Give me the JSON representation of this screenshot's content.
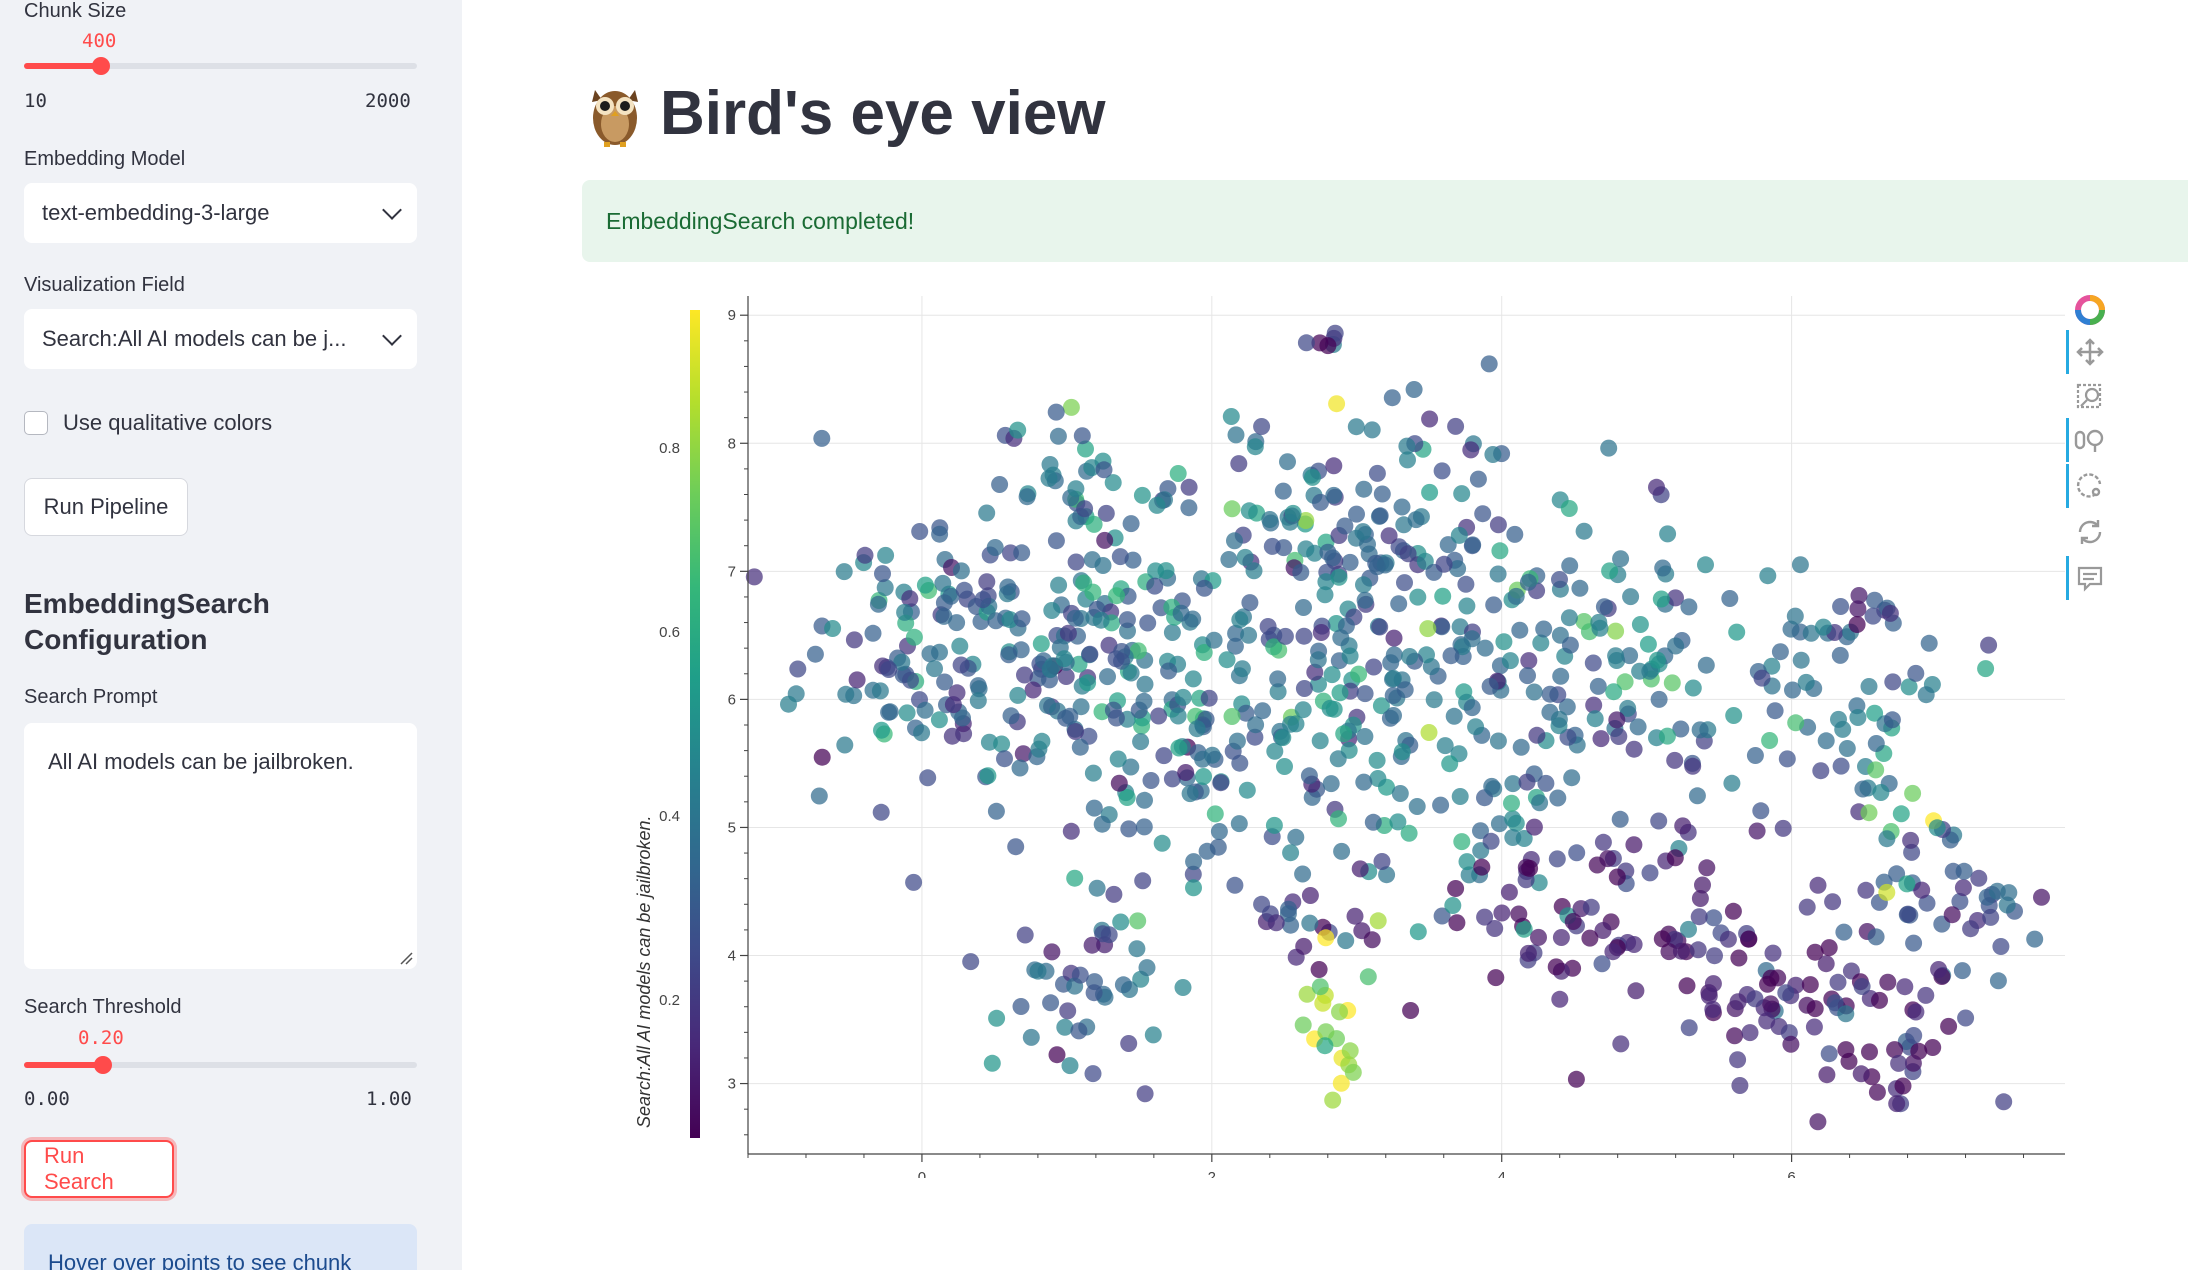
{
  "sidebar": {
    "chunk_size": {
      "label": "Chunk Size",
      "value": "400",
      "min": "10",
      "max": "2000",
      "fraction": 0.197
    },
    "embedding_model": {
      "label": "Embedding Model",
      "value": "text-embedding-3-large"
    },
    "visualization_field": {
      "label": "Visualization Field",
      "value": "Search:All AI models can be j..."
    },
    "qualitative_colors": {
      "label": "Use qualitative colors",
      "checked": false
    },
    "run_pipeline": "Run Pipeline",
    "search_config_title": "EmbeddingSearch Configuration",
    "search_prompt": {
      "label": "Search Prompt",
      "value": "All AI models can be jailbroken."
    },
    "search_threshold": {
      "label": "Search Threshold",
      "value": "0.20",
      "min": "0.00",
      "max": "1.00",
      "fraction": 0.2
    },
    "run_search": "Run Search",
    "info": "Hover over points to see chunk"
  },
  "main": {
    "title": "Bird's eye view",
    "title_icon": "owl-emoji",
    "success_message": "EmbeddingSearch completed!"
  },
  "toolbar": {
    "icons": [
      "bokeh-logo-icon",
      "pan-icon",
      "box-zoom-icon",
      "wheel-zoom-icon",
      "lasso-icon",
      "reset-icon",
      "hover-icon"
    ]
  },
  "chart_data": {
    "type": "scatter",
    "xlim": [
      -1.2,
      7.9
    ],
    "ylim": [
      2.45,
      9.15
    ],
    "x_ticks": [
      0,
      2,
      4,
      6
    ],
    "y_ticks": [
      3,
      4,
      5,
      6,
      7,
      8,
      9
    ],
    "colorbar": {
      "label": "Search:All AI models can be jailbroken.",
      "range": [
        0.05,
        0.95
      ],
      "ticks": [
        0.2,
        0.4,
        0.6,
        0.8
      ],
      "colormap": "viridis"
    },
    "grid": true,
    "clusters": [
      {
        "cx": 0.2,
        "cy": 6.4,
        "sx": 0.55,
        "sy": 0.55,
        "n": 140,
        "v": 0.32
      },
      {
        "cx": 1.4,
        "cy": 6.6,
        "sx": 0.45,
        "sy": 0.7,
        "n": 110,
        "v": 0.38
      },
      {
        "cx": 1.0,
        "cy": 7.8,
        "sx": 0.22,
        "sy": 0.3,
        "n": 20,
        "v": 0.4
      },
      {
        "cx": 1.8,
        "cy": 5.5,
        "sx": 0.45,
        "sy": 0.5,
        "n": 70,
        "v": 0.36
      },
      {
        "cx": 1.1,
        "cy": 3.8,
        "sx": 0.3,
        "sy": 0.35,
        "n": 45,
        "v": 0.3
      },
      {
        "cx": 2.6,
        "cy": 6.8,
        "sx": 0.45,
        "sy": 0.7,
        "n": 110,
        "v": 0.33
      },
      {
        "cx": 3.4,
        "cy": 7.4,
        "sx": 0.45,
        "sy": 0.55,
        "n": 70,
        "v": 0.34
      },
      {
        "cx": 3.3,
        "cy": 5.6,
        "sx": 0.5,
        "sy": 0.6,
        "n": 90,
        "v": 0.42
      },
      {
        "cx": 2.7,
        "cy": 4.4,
        "sx": 0.25,
        "sy": 0.25,
        "n": 22,
        "v": 0.18
      },
      {
        "cx": 2.85,
        "cy": 3.55,
        "sx": 0.12,
        "sy": 0.3,
        "n": 20,
        "v": 0.78
      },
      {
        "cx": 2.75,
        "cy": 8.8,
        "sx": 0.06,
        "sy": 0.05,
        "n": 6,
        "v": 0.08
      },
      {
        "cx": 4.4,
        "cy": 6.2,
        "sx": 0.4,
        "sy": 0.55,
        "n": 70,
        "v": 0.35
      },
      {
        "cx": 5.0,
        "cy": 6.4,
        "sx": 0.35,
        "sy": 0.5,
        "n": 55,
        "v": 0.38
      },
      {
        "cx": 5.0,
        "cy": 4.4,
        "sx": 0.55,
        "sy": 0.45,
        "n": 75,
        "v": 0.16
      },
      {
        "cx": 6.3,
        "cy": 5.9,
        "sx": 0.5,
        "sy": 0.45,
        "n": 60,
        "v": 0.4
      },
      {
        "cx": 6.0,
        "cy": 3.6,
        "sx": 0.35,
        "sy": 0.3,
        "n": 40,
        "v": 0.12
      },
      {
        "cx": 6.6,
        "cy": 3.4,
        "sx": 0.3,
        "sy": 0.3,
        "n": 40,
        "v": 0.1
      },
      {
        "cx": 7.0,
        "cy": 4.4,
        "sx": 0.4,
        "sy": 0.3,
        "n": 45,
        "v": 0.28
      },
      {
        "cx": 6.6,
        "cy": 6.7,
        "sx": 0.08,
        "sy": 0.06,
        "n": 8,
        "v": 0.15
      },
      {
        "cx": 6.75,
        "cy": 4.9,
        "sx": 0.15,
        "sy": 0.2,
        "n": 10,
        "v": 0.6
      },
      {
        "cx": 4.2,
        "cy": 4.3,
        "sx": 0.3,
        "sy": 0.3,
        "n": 20,
        "v": 0.12
      }
    ]
  }
}
